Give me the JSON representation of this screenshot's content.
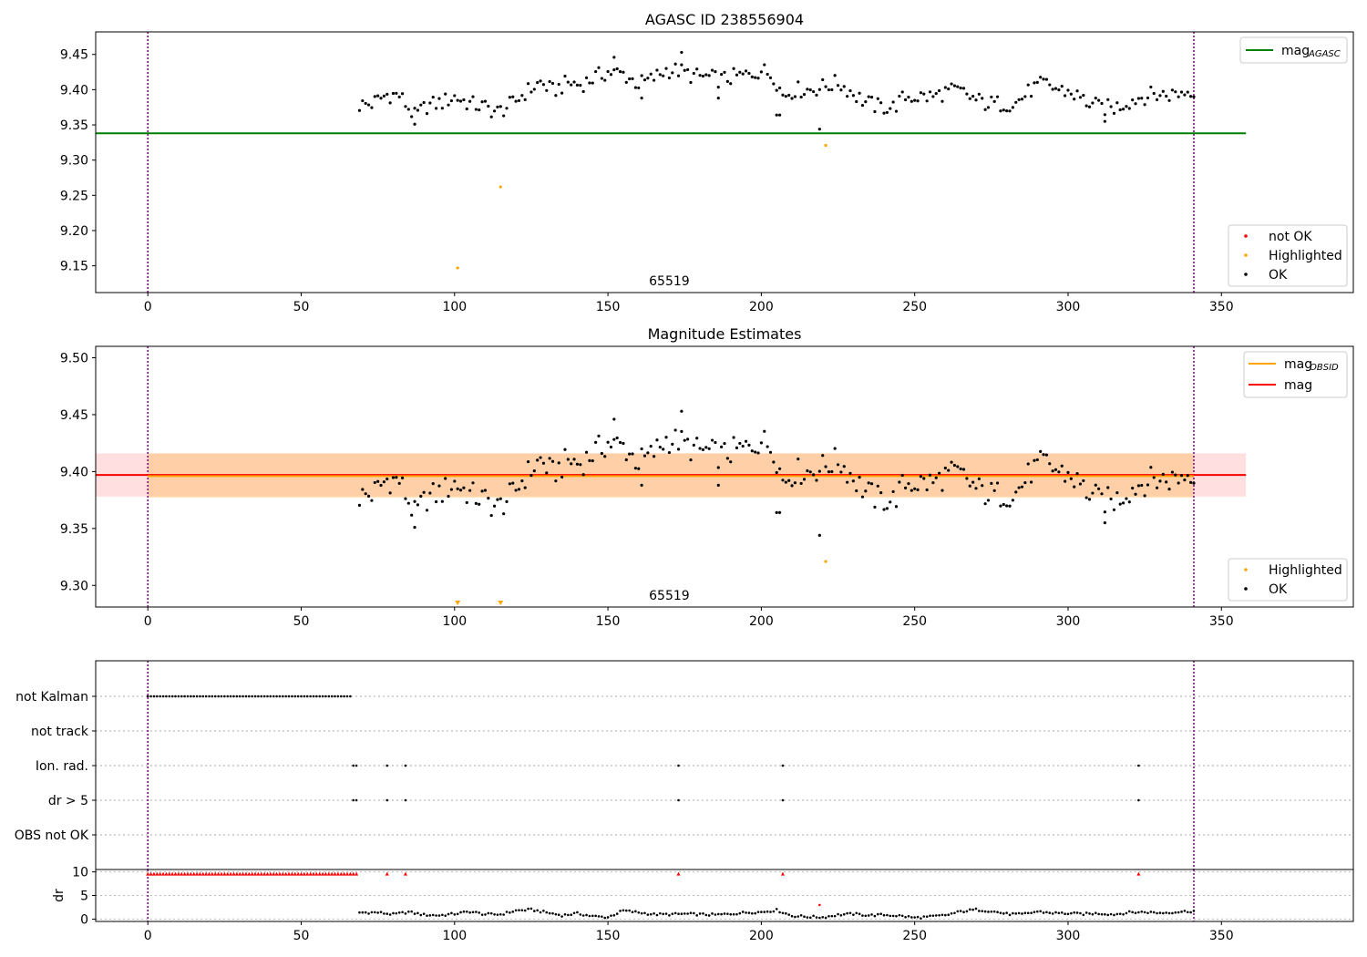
{
  "chart_data": [
    {
      "type": "scatter",
      "title": "AGASC ID 238556904",
      "xlim": [
        -17,
        393
      ],
      "ylim": [
        9.112,
        9.482
      ],
      "xticks": [
        0,
        50,
        100,
        150,
        200,
        250,
        300,
        350
      ],
      "yticks": [
        9.15,
        9.2,
        9.25,
        9.3,
        9.35,
        9.4,
        9.45
      ],
      "ytick_labels": [
        "9.15",
        "9.20",
        "9.25",
        "9.30",
        "9.35",
        "9.40",
        "9.45"
      ],
      "annotation": "65519",
      "annotation_x": 170,
      "vlines": [
        0,
        341
      ],
      "hlines": [
        {
          "name": "mag_AGASC",
          "y": 9.338,
          "x": [
            -17,
            358
          ],
          "color": "#008000"
        }
      ],
      "legend_lines": {
        "label": "mag",
        "sub": "AGASC"
      },
      "legend_points": [
        "not OK",
        "Highlighted",
        "OK"
      ],
      "legend_colors": [
        "#ff0000",
        "#ffa500",
        "#000000"
      ],
      "ok_start": 69,
      "ok_end": 341,
      "mag_profile": [
        [
          69,
          9.378
        ],
        [
          73,
          9.38
        ],
        [
          78,
          9.393
        ],
        [
          82,
          9.392
        ],
        [
          87,
          9.362
        ],
        [
          91,
          9.377
        ],
        [
          96,
          9.382
        ],
        [
          100,
          9.39
        ],
        [
          105,
          9.38
        ],
        [
          110,
          9.375
        ],
        [
          114,
          9.368
        ],
        [
          119,
          9.38
        ],
        [
          123,
          9.396
        ],
        [
          128,
          9.41
        ],
        [
          132,
          9.398
        ],
        [
          137,
          9.41
        ],
        [
          141,
          9.407
        ],
        [
          146,
          9.418
        ],
        [
          150,
          9.425
        ],
        [
          155,
          9.422
        ],
        [
          160,
          9.408
        ],
        [
          164,
          9.414
        ],
        [
          169,
          9.428
        ],
        [
          173,
          9.427
        ],
        [
          178,
          9.419
        ],
        [
          182,
          9.418
        ],
        [
          187,
          9.414
        ],
        [
          191,
          9.418
        ],
        [
          196,
          9.421
        ],
        [
          200,
          9.428
        ],
        [
          204,
          9.42
        ],
        [
          207,
          9.392
        ],
        [
          211,
          9.4
        ],
        [
          216,
          9.4
        ],
        [
          220,
          9.404
        ],
        [
          225,
          9.41
        ],
        [
          229,
          9.398
        ],
        [
          234,
          9.382
        ],
        [
          238,
          9.376
        ],
        [
          243,
          9.375
        ],
        [
          247,
          9.39
        ],
        [
          252,
          9.39
        ],
        [
          256,
          9.39
        ],
        [
          261,
          9.398
        ],
        [
          265,
          9.397
        ],
        [
          270,
          9.385
        ],
        [
          274,
          9.38
        ],
        [
          279,
          9.38
        ],
        [
          283,
          9.381
        ],
        [
          288,
          9.4
        ],
        [
          292,
          9.408
        ],
        [
          297,
          9.4
        ],
        [
          301,
          9.396
        ],
        [
          306,
          9.383
        ],
        [
          310,
          9.375
        ],
        [
          315,
          9.374
        ],
        [
          319,
          9.382
        ],
        [
          324,
          9.39
        ],
        [
          328,
          9.393
        ],
        [
          333,
          9.393
        ],
        [
          337,
          9.396
        ],
        [
          341,
          9.4
        ]
      ],
      "outliers_ok": [
        [
          87,
          9.351
        ],
        [
          174,
          9.453
        ],
        [
          152,
          9.446
        ],
        [
          205,
          9.364
        ],
        [
          206,
          9.364
        ],
        [
          219,
          9.344
        ],
        [
          161,
          9.388
        ],
        [
          186,
          9.388
        ],
        [
          312,
          9.355
        ]
      ],
      "highlighted": [
        [
          101,
          9.147
        ],
        [
          115,
          9.262
        ],
        [
          221,
          9.321
        ]
      ],
      "not_ok": []
    },
    {
      "type": "scatter",
      "title": "Magnitude Estimates",
      "xlim": [
        -17,
        393
      ],
      "ylim": [
        9.281,
        9.51
      ],
      "xticks": [
        0,
        50,
        100,
        150,
        200,
        250,
        300,
        350
      ],
      "yticks": [
        9.3,
        9.35,
        9.4,
        9.45,
        9.5
      ],
      "ytick_labels": [
        "9.30",
        "9.35",
        "9.40",
        "9.45",
        "9.50"
      ],
      "annotation": "65519",
      "annotation_x": 170,
      "vlines": [
        0,
        341
      ],
      "hlines": [
        {
          "name": "mag",
          "y": 9.397,
          "x": [
            -17,
            358
          ],
          "color": "#ff0000"
        },
        {
          "name": "mag_OBSID",
          "y": 9.396,
          "x": [
            0,
            341
          ],
          "color": "#ffa500"
        }
      ],
      "bands": [
        {
          "y": [
            9.378,
            9.416
          ],
          "x": [
            -17,
            358
          ],
          "color": "#ff000020"
        },
        {
          "y": [
            9.377,
            9.416
          ],
          "x": [
            0,
            341
          ],
          "color": "#ffa50040"
        }
      ],
      "legend_lines": [
        {
          "label": "mag",
          "sub": "OBSID",
          "color": "#ffa500"
        },
        {
          "label": "mag",
          "sub": "",
          "color": "#ff0000"
        }
      ],
      "legend_points": [
        "Highlighted",
        "OK"
      ],
      "legend_colors": [
        "#ffa500",
        "#000000"
      ],
      "highlighted": [
        [
          221,
          9.321
        ]
      ],
      "offscale_markers": [
        101,
        115
      ]
    },
    {
      "type": "scatter",
      "title": "",
      "xlim": [
        -17,
        393
      ],
      "categories": [
        "not Kalman",
        "not track",
        "Ion. rad.",
        "dr > 5",
        "OBS not OK"
      ],
      "flags": {
        "not Kalman": {
          "range": [
            0,
            66
          ]
        },
        "not track": {
          "points": []
        },
        "Ion. rad.": {
          "points": [
            67,
            68,
            78,
            84,
            173,
            207,
            323
          ]
        },
        "dr > 5": {
          "points": [
            67,
            68,
            78,
            84,
            173,
            207,
            323
          ]
        },
        "OBS not OK": {
          "points": []
        }
      },
      "vlines": [
        0,
        341
      ]
    },
    {
      "type": "scatter",
      "title": "",
      "ylabel": "dr",
      "xlim": [
        -17,
        393
      ],
      "xticks": [
        0,
        50,
        100,
        150,
        200,
        250,
        300,
        350
      ],
      "ylim": [
        -0.5,
        10.5
      ],
      "yticks": [
        0,
        5,
        10
      ],
      "ytick_labels": [
        "0",
        "5",
        "10"
      ],
      "dr_capped": {
        "range": [
          0,
          68
        ],
        "value": 9.6,
        "extra": [
          78,
          84,
          173,
          207,
          323
        ]
      },
      "dr_profile": [
        [
          69,
          1.4
        ],
        [
          75,
          1.4
        ],
        [
          80,
          1.0
        ],
        [
          85,
          1.5
        ],
        [
          90,
          0.9
        ],
        [
          95,
          0.8
        ],
        [
          100,
          1.1
        ],
        [
          105,
          1.6
        ],
        [
          110,
          1.0
        ],
        [
          115,
          1.0
        ],
        [
          120,
          1.8
        ],
        [
          125,
          2.0
        ],
        [
          130,
          1.4
        ],
        [
          135,
          0.8
        ],
        [
          140,
          1.2
        ],
        [
          145,
          0.6
        ],
        [
          150,
          0.4
        ],
        [
          155,
          1.8
        ],
        [
          160,
          1.4
        ],
        [
          165,
          1.0
        ],
        [
          170,
          1.0
        ],
        [
          175,
          1.1
        ],
        [
          180,
          1.0
        ],
        [
          185,
          0.9
        ],
        [
          190,
          1.1
        ],
        [
          195,
          1.4
        ],
        [
          200,
          1.5
        ],
        [
          205,
          1.9
        ],
        [
          210,
          0.7
        ],
        [
          215,
          0.5
        ],
        [
          220,
          0.4
        ],
        [
          225,
          0.9
        ],
        [
          230,
          1.1
        ],
        [
          235,
          0.8
        ],
        [
          240,
          0.9
        ],
        [
          245,
          0.7
        ],
        [
          250,
          0.3
        ],
        [
          255,
          0.5
        ],
        [
          260,
          0.8
        ],
        [
          265,
          1.6
        ],
        [
          270,
          2.0
        ],
        [
          275,
          1.7
        ],
        [
          280,
          1.1
        ],
        [
          285,
          1.0
        ],
        [
          290,
          1.6
        ],
        [
          295,
          1.3
        ],
        [
          300,
          1.2
        ],
        [
          305,
          1.1
        ],
        [
          310,
          1.2
        ],
        [
          315,
          1.0
        ],
        [
          320,
          1.4
        ],
        [
          325,
          1.5
        ],
        [
          330,
          1.3
        ],
        [
          335,
          1.5
        ],
        [
          341,
          1.7
        ]
      ],
      "dr_red": [
        [
          219,
          3.0
        ]
      ]
    }
  ]
}
